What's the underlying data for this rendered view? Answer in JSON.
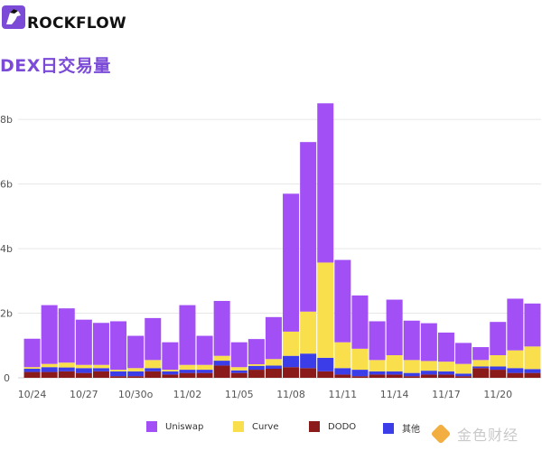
{
  "brand": {
    "name": "ROCKFLOW",
    "colors": {
      "logo_bg": "#7b4bd8",
      "logo_ink": "#111111"
    }
  },
  "title": "DEX日交易量",
  "watermark": {
    "text": "金色财经"
  },
  "chart_data": {
    "type": "bar",
    "stacked": true,
    "title": "DEX日交易量",
    "xlabel": "",
    "ylabel": "",
    "ylim": [
      0,
      8.9
    ],
    "yticks": [
      0,
      2,
      4,
      6,
      8
    ],
    "ytick_labels": [
      "0",
      "2b",
      "4b",
      "6b",
      "8b"
    ],
    "xtick_labels": [
      {
        "index": 0,
        "label": "10/24"
      },
      {
        "index": 3,
        "label": "10/27"
      },
      {
        "index": 6,
        "label": "10/30o"
      },
      {
        "index": 9,
        "label": "11/02"
      },
      {
        "index": 12,
        "label": "11/05"
      },
      {
        "index": 15,
        "label": "11/08"
      },
      {
        "index": 18,
        "label": "11/11"
      },
      {
        "index": 21,
        "label": "11/14"
      },
      {
        "index": 24,
        "label": "11/17"
      },
      {
        "index": 27,
        "label": "11/20"
      }
    ],
    "categories": [
      "10/24",
      "10/25",
      "10/26",
      "10/27",
      "10/28",
      "10/29",
      "10/30",
      "10/31",
      "11/01",
      "11/02",
      "11/03",
      "11/04",
      "11/05",
      "11/06",
      "11/07",
      "11/08",
      "11/09",
      "11/10",
      "11/11",
      "11/12",
      "11/13",
      "11/14",
      "11/15",
      "11/16",
      "11/17",
      "11/18",
      "11/19",
      "11/20",
      "11/21",
      "11/22"
    ],
    "series": [
      {
        "name": "DODO",
        "color": "#8b1a1a",
        "values": [
          0.18,
          0.18,
          0.2,
          0.15,
          0.2,
          0.05,
          0.05,
          0.2,
          0.1,
          0.15,
          0.15,
          0.38,
          0.15,
          0.25,
          0.28,
          0.33,
          0.3,
          0.2,
          0.1,
          0.05,
          0.1,
          0.1,
          0.05,
          0.1,
          0.1,
          0.05,
          0.3,
          0.25,
          0.15,
          0.15
        ]
      },
      {
        "name": "其他",
        "color": "#3b3ee8",
        "values": [
          0.1,
          0.15,
          0.12,
          0.15,
          0.1,
          0.15,
          0.15,
          0.1,
          0.1,
          0.1,
          0.1,
          0.15,
          0.08,
          0.12,
          0.1,
          0.35,
          0.45,
          0.42,
          0.2,
          0.2,
          0.1,
          0.1,
          0.1,
          0.12,
          0.1,
          0.08,
          0.05,
          0.1,
          0.15,
          0.12
        ]
      },
      {
        "name": "Curve",
        "color": "#f9df4b",
        "values": [
          0.05,
          0.1,
          0.15,
          0.1,
          0.1,
          0.05,
          0.1,
          0.25,
          0.05,
          0.15,
          0.15,
          0.15,
          0.1,
          0.05,
          0.2,
          0.75,
          1.3,
          2.95,
          0.8,
          0.65,
          0.35,
          0.5,
          0.4,
          0.3,
          0.3,
          0.3,
          0.2,
          0.35,
          0.55,
          0.7
        ]
      },
      {
        "name": "Uniswap",
        "color": "#a24ff6",
        "values": [
          0.88,
          1.82,
          1.68,
          1.4,
          1.3,
          1.5,
          1.0,
          1.3,
          0.85,
          1.85,
          0.9,
          1.7,
          0.77,
          0.78,
          1.3,
          4.27,
          5.25,
          4.93,
          2.55,
          1.65,
          1.2,
          1.72,
          1.22,
          1.17,
          0.9,
          0.65,
          0.4,
          1.03,
          1.6,
          1.33
        ]
      }
    ],
    "legend": [
      "Uniswap",
      "Curve",
      "DODO",
      "其他"
    ],
    "legend_position": "bottom",
    "grid": true
  }
}
